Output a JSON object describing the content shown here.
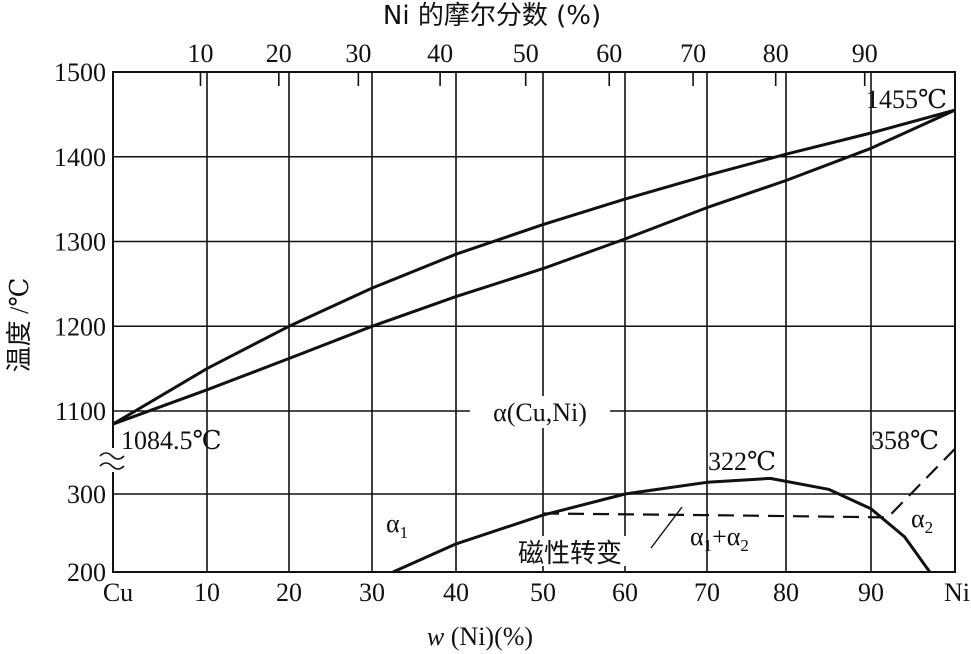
{
  "chart_data": {
    "type": "line",
    "title": "",
    "xlabel": "w (Ni)(%)",
    "x2label": "Ni 的摩尔分数 (%)",
    "ylabel": "温度 /℃",
    "x_end_labels": {
      "left": "Cu",
      "right": "Ni"
    },
    "x_ticks": [
      10,
      20,
      30,
      40,
      50,
      60,
      70,
      80,
      90
    ],
    "x2_ticks": [
      10,
      20,
      30,
      40,
      50,
      60,
      70,
      80,
      90
    ],
    "y_ticks": [
      200,
      300,
      1100,
      1200,
      1300,
      1400,
      1500
    ],
    "xlim": [
      0,
      100
    ],
    "ylim_upper": [
      1100,
      1500
    ],
    "ylim_lower": [
      200,
      300
    ],
    "axis_break": true,
    "grid": true,
    "series": [
      {
        "key": "liquidus",
        "style": "solid",
        "x": [
          0,
          10,
          20,
          30,
          40,
          50,
          60,
          70,
          80,
          90,
          100
        ],
        "y": [
          1084.5,
          1150,
          1200,
          1245,
          1285,
          1320,
          1350,
          1378,
          1403,
          1428,
          1455
        ]
      },
      {
        "key": "solidus",
        "style": "solid",
        "x": [
          0,
          10,
          20,
          30,
          40,
          50,
          60,
          70,
          80,
          90,
          100
        ],
        "y": [
          1084.5,
          1125,
          1162,
          1200,
          1235,
          1268,
          1303,
          1340,
          1372,
          1410,
          1455
        ]
      },
      {
        "key": "miscibility-gap",
        "style": "solid",
        "x": [
          32.5,
          40,
          50,
          60,
          70,
          78,
          85,
          90,
          94,
          97
        ],
        "y": [
          200,
          236,
          273,
          300,
          315,
          320,
          306,
          281,
          245,
          200
        ]
      },
      {
        "key": "magnetic-transition",
        "style": "dashed",
        "x": [
          50,
          70,
          92,
          100
        ],
        "y": [
          275,
          273,
          270,
          358
        ]
      }
    ],
    "annotations": {
      "cu_melt": "1084.5℃",
      "ni_melt": "1455℃",
      "gap_top": "322℃",
      "ni_curie": "358℃",
      "alpha_phase": "α(Cu,Ni)",
      "alpha1": "α",
      "alpha1_sub": "1",
      "alpha2": "α",
      "alpha2_sub": "2",
      "two_phase_a": "α",
      "two_phase_sub1": "1",
      "two_phase_plus": "+α",
      "two_phase_sub2": "2",
      "magnetic": "磁性转变"
    }
  }
}
